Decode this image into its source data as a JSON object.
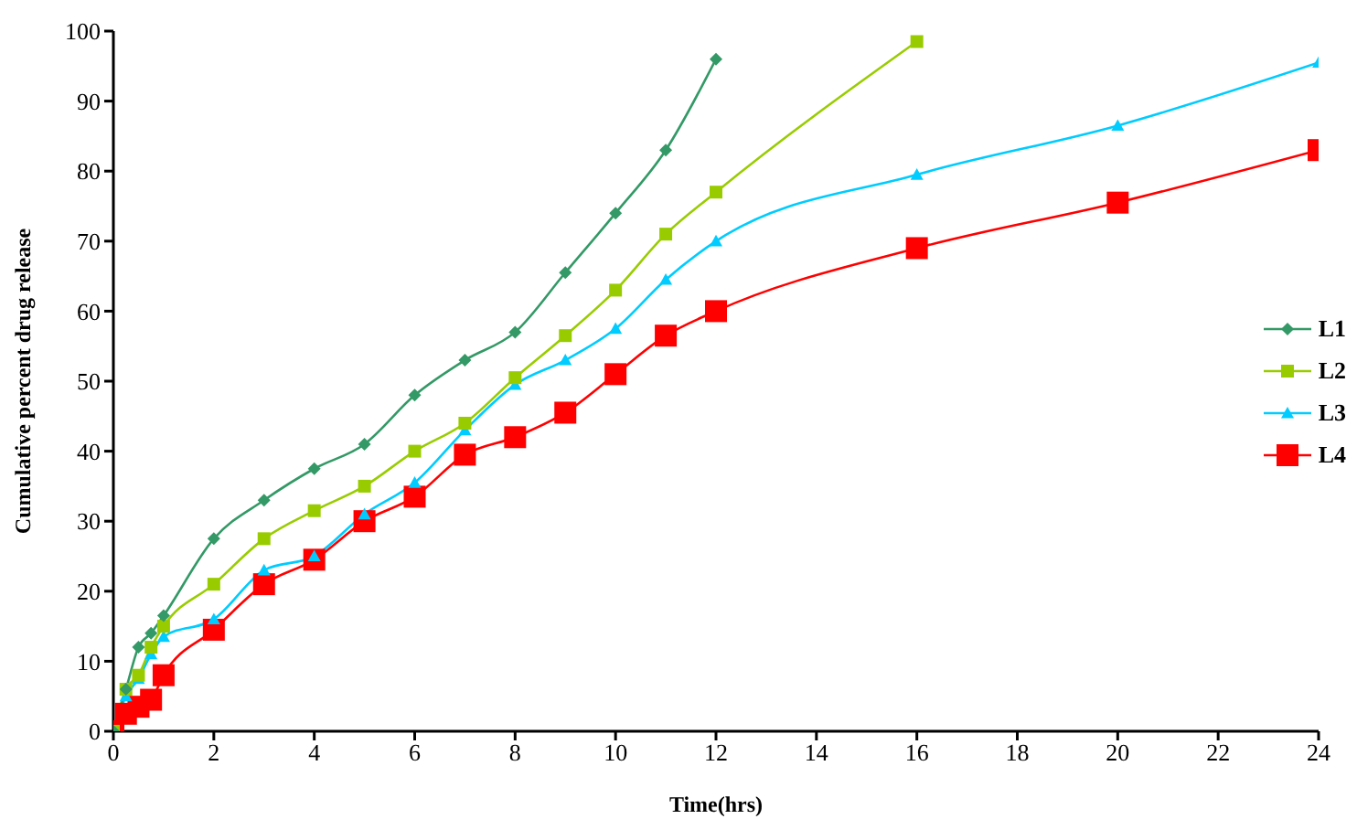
{
  "chart_data": {
    "type": "line",
    "xlabel": "Time(hrs)",
    "ylabel": "Cumulative percent drug release",
    "x": [
      0,
      0.25,
      0.5,
      0.75,
      1,
      2,
      3,
      4,
      5,
      6,
      7,
      8,
      9,
      10,
      11,
      12,
      16,
      20,
      24
    ],
    "series": [
      {
        "name": "L1",
        "color": "#339966",
        "marker": "diamond",
        "x": [
          0,
          0.25,
          0.5,
          0.75,
          1,
          2,
          3,
          4,
          5,
          6,
          7,
          8,
          9,
          10,
          11,
          12
        ],
        "values": [
          0,
          6,
          12,
          14,
          16.5,
          27.5,
          33,
          37.5,
          41,
          48,
          53,
          57,
          65.5,
          74,
          83,
          96
        ]
      },
      {
        "name": "L2",
        "color": "#99cc00",
        "marker": "square",
        "x": [
          0,
          0.25,
          0.5,
          0.75,
          1,
          2,
          3,
          4,
          5,
          6,
          7,
          8,
          9,
          10,
          11,
          12,
          16
        ],
        "values": [
          0,
          6,
          8,
          12,
          15,
          21,
          27.5,
          31.5,
          35,
          40,
          44,
          50.5,
          56.5,
          63,
          71,
          77,
          98.5
        ]
      },
      {
        "name": "L3",
        "color": "#00ccff",
        "marker": "triangle",
        "values": [
          0,
          5,
          7.5,
          11,
          13.5,
          16,
          23,
          25,
          31,
          35.5,
          43,
          49.5,
          53,
          57.5,
          64.5,
          70,
          79.5,
          86.5,
          95.5
        ]
      },
      {
        "name": "L4",
        "color": "#ff0000",
        "marker": "square",
        "values": [
          0,
          2.5,
          3.5,
          4.5,
          8,
          14.5,
          21,
          24.5,
          30,
          33.5,
          39.5,
          42,
          45.5,
          51,
          56.5,
          60,
          69,
          75.5,
          83
        ]
      }
    ],
    "xlim": [
      0,
      24
    ],
    "xticks": [
      0,
      2,
      4,
      6,
      8,
      10,
      12,
      14,
      16,
      18,
      20,
      22,
      24
    ],
    "ylim": [
      0,
      100
    ],
    "yticks": [
      0,
      10,
      20,
      30,
      40,
      50,
      60,
      70,
      80,
      90,
      100
    ],
    "grid": false,
    "legend": "right"
  }
}
